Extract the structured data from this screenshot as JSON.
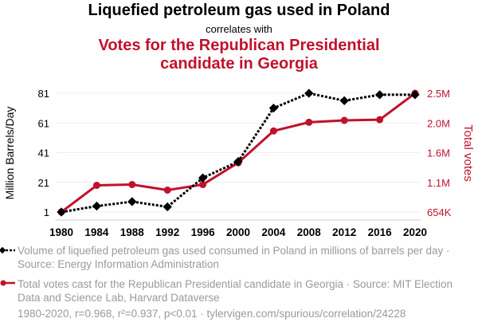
{
  "chart_data": {
    "type": "line",
    "title": "Liquefied petroleum gas used in Poland",
    "subtitle": "correlates with",
    "title2_line1": "Votes for the Republican Presidential",
    "title2_line2": "candidate in Georgia",
    "x": [
      1980,
      1984,
      1988,
      1992,
      1996,
      2000,
      2004,
      2008,
      2012,
      2016,
      2020
    ],
    "ylabel": "Million Barrels/Day",
    "y2label": "Total votes",
    "yticks": [
      "1",
      "21",
      "41",
      "61",
      "81"
    ],
    "y2ticks": [
      "654K",
      "1.1M",
      "1.6M",
      "2.0M",
      "2.5M"
    ],
    "ylim": [
      1,
      81
    ],
    "y2lim": [
      654000,
      2500000
    ],
    "grid": true,
    "series": [
      {
        "name": "Volume of liquefied petroleum gas used consumed in Poland in millions of barrels per day · Source: Energy Information Administration",
        "axis": "left",
        "color": "#000000",
        "values": [
          1,
          5,
          8,
          4.5,
          24,
          35,
          71,
          81,
          76,
          80,
          80
        ]
      },
      {
        "name": "Total votes cast for the Republican Presidential candidate in Georgia · Source: MIT Election Data and Science Lab, Harvard Dataverse",
        "axis": "right",
        "color": "#c0122c",
        "values": [
          654168,
          1068722,
          1081331,
          995252,
          1080843,
          1419720,
          1914254,
          2048759,
          2078688,
          2089104,
          2500000
        ]
      }
    ],
    "legend_position": "bottom",
    "footer": "1980-2020, r=0.968, r²=0.937, p<0.01 · tylervigen.com/spurious/correlation/24228"
  }
}
